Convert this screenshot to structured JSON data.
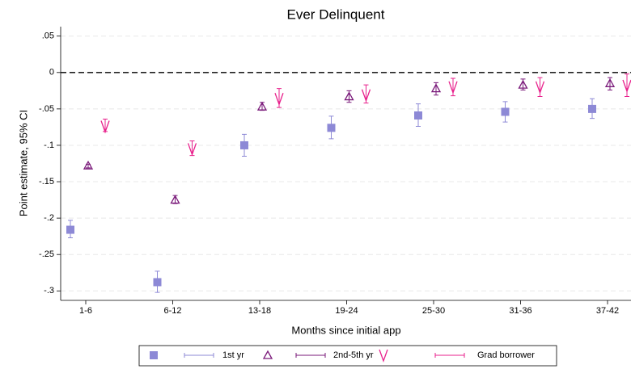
{
  "chart_data": {
    "type": "errorbar",
    "title": "Ever Delinquent",
    "y_label": "Point estimate, 95% CI",
    "x_label": "Months since initial app",
    "categories": [
      "1-6",
      "6-12",
      "13-18",
      "19-24",
      "25-30",
      "31-36",
      "37-42"
    ],
    "ylim": [
      -0.313,
      0.063
    ],
    "yticks": [
      {
        "value": 0.05,
        "label": ".05"
      },
      0,
      {
        "value": -0.05,
        "label": "-.05"
      },
      {
        "value": -0.1,
        "label": "-.1"
      },
      {
        "value": -0.15,
        "label": "-.15"
      },
      {
        "value": -0.2,
        "label": "-.2"
      },
      {
        "value": -0.25,
        "label": "-.25"
      },
      {
        "value": -0.3,
        "label": "-.3"
      }
    ],
    "grid": true,
    "reference_line": 0,
    "series": [
      {
        "name": "1st yr",
        "color": "#8d89d6",
        "marker": "square",
        "values": [
          -0.216,
          -0.288,
          -0.1,
          -0.076,
          -0.059,
          -0.054,
          -0.05
        ],
        "lower": [
          -0.227,
          -0.302,
          -0.115,
          -0.091,
          -0.074,
          -0.068,
          -0.063
        ],
        "upper": [
          -0.203,
          -0.273,
          -0.085,
          -0.06,
          -0.043,
          -0.04,
          -0.036
        ]
      },
      {
        "name": "2nd-5th yr",
        "color": "#7a1a7a",
        "marker": "triangle",
        "values": [
          -0.128,
          -0.175,
          -0.047,
          -0.033,
          -0.022,
          -0.017,
          -0.015
        ],
        "lower": [
          -0.131,
          -0.18,
          -0.052,
          -0.041,
          -0.031,
          -0.024,
          -0.024
        ],
        "upper": [
          -0.126,
          -0.169,
          -0.041,
          -0.025,
          -0.014,
          -0.009,
          -0.007
        ]
      },
      {
        "name": "Grad borrower",
        "color": "#e8218c",
        "marker": "v",
        "values": [
          -0.074,
          -0.105,
          -0.036,
          -0.031,
          -0.02,
          -0.02,
          -0.018
        ],
        "lower": [
          -0.081,
          -0.114,
          -0.048,
          -0.042,
          -0.032,
          -0.033,
          -0.033
        ],
        "upper": [
          -0.064,
          -0.094,
          -0.022,
          -0.017,
          -0.008,
          -0.007,
          -0.002
        ]
      }
    ]
  }
}
